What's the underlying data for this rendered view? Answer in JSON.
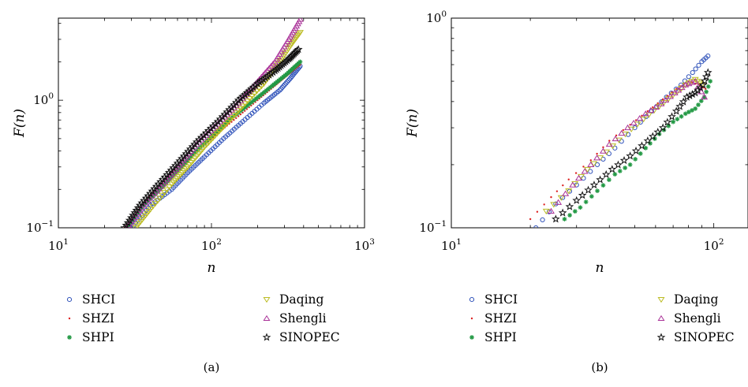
{
  "chart_data": [
    {
      "type": "scatter",
      "panel_label": "(a)",
      "xlabel": "n",
      "ylabel": "F(n)",
      "x_scale": "log",
      "y_scale": "log",
      "xlim": [
        10,
        1000
      ],
      "ylim": [
        0.1,
        4.4
      ],
      "x_ticks": [
        {
          "base": "10",
          "exp": "1",
          "value": 10
        },
        {
          "base": "10",
          "exp": "2",
          "value": 100
        },
        {
          "base": "10",
          "exp": "3",
          "value": 1000
        }
      ],
      "y_ticks": [
        {
          "base": "10",
          "exp": "−1",
          "value": 0.1
        },
        {
          "base": "10",
          "exp": "0",
          "value": 1
        }
      ],
      "grid": false,
      "legend_position": "bottom",
      "series": [
        {
          "name": "SHCI",
          "marker": "circle",
          "color": "#3355bb",
          "x": [
            30,
            40,
            55,
            70,
            90,
            120,
            160,
            220,
            280,
            330,
            380
          ],
          "y": [
            0.1,
            0.15,
            0.2,
            0.27,
            0.36,
            0.5,
            0.68,
            0.95,
            1.2,
            1.5,
            1.85
          ]
        },
        {
          "name": "SHZI",
          "marker": "dot",
          "color": "#dd2222",
          "x": [
            27,
            35,
            45,
            60,
            80,
            110,
            150,
            200,
            260,
            320,
            380
          ],
          "y": [
            0.1,
            0.15,
            0.21,
            0.29,
            0.4,
            0.55,
            0.75,
            1.0,
            1.3,
            1.6,
            1.9
          ]
        },
        {
          "name": "SHPI",
          "marker": "asterisk",
          "color": "#229944",
          "x": [
            28,
            36,
            48,
            62,
            80,
            105,
            140,
            190,
            250,
            310,
            380
          ],
          "y": [
            0.1,
            0.15,
            0.21,
            0.29,
            0.4,
            0.55,
            0.75,
            1.0,
            1.3,
            1.6,
            2.0
          ]
        },
        {
          "name": "Daqing",
          "marker": "triangle-down",
          "color": "#bbbb22",
          "x": [
            32,
            40,
            55,
            70,
            90,
            120,
            160,
            220,
            280,
            330,
            380
          ],
          "y": [
            0.1,
            0.14,
            0.22,
            0.3,
            0.43,
            0.62,
            0.9,
            1.35,
            2.0,
            2.7,
            3.4
          ]
        },
        {
          "name": "Shengli",
          "marker": "triangle-up",
          "color": "#aa3399",
          "x": [
            28,
            36,
            48,
            62,
            80,
            110,
            150,
            200,
            260,
            320,
            380
          ],
          "y": [
            0.1,
            0.15,
            0.22,
            0.31,
            0.45,
            0.65,
            0.95,
            1.4,
            2.0,
            3.0,
            4.3
          ]
        },
        {
          "name": "SINOPEC",
          "marker": "star",
          "color": "#111111",
          "x": [
            27,
            34,
            45,
            60,
            80,
            110,
            150,
            200,
            260,
            320,
            370
          ],
          "y": [
            0.1,
            0.15,
            0.22,
            0.32,
            0.47,
            0.68,
            1.0,
            1.35,
            1.7,
            2.1,
            2.5
          ]
        }
      ]
    },
    {
      "type": "scatter",
      "panel_label": "(b)",
      "xlabel": "n",
      "ylabel": "F(n)",
      "x_scale": "log",
      "y_scale": "log",
      "xlim": [
        10,
        135
      ],
      "ylim": [
        0.1,
        1.0
      ],
      "x_ticks": [
        {
          "base": "10",
          "exp": "1",
          "value": 10
        },
        {
          "base": "10",
          "exp": "2",
          "value": 100
        }
      ],
      "y_ticks": [
        {
          "base": "10",
          "exp": "−1",
          "value": 0.1
        },
        {
          "base": "10",
          "exp": "0",
          "value": 1
        }
      ],
      "grid": false,
      "legend_position": "bottom",
      "series": [
        {
          "name": "SHCI",
          "marker": "circle",
          "color": "#3355bb",
          "x": [
            21,
            25,
            30,
            36,
            42,
            50,
            58,
            66,
            75,
            83,
            90,
            95
          ],
          "y": [
            0.1,
            0.13,
            0.16,
            0.2,
            0.24,
            0.3,
            0.36,
            0.42,
            0.48,
            0.55,
            0.62,
            0.66
          ]
        },
        {
          "name": "SHZI",
          "marker": "dot",
          "color": "#dd2222",
          "x": [
            20,
            24,
            28,
            34,
            40,
            48,
            56,
            64,
            72,
            80,
            88,
            93
          ],
          "y": [
            0.11,
            0.14,
            0.17,
            0.21,
            0.26,
            0.31,
            0.36,
            0.41,
            0.46,
            0.5,
            0.48,
            0.46
          ]
        },
        {
          "name": "SHPI",
          "marker": "asterisk",
          "color": "#229944",
          "x": [
            27,
            31,
            36,
            42,
            48,
            55,
            62,
            70,
            78,
            85,
            92,
            97
          ],
          "y": [
            0.11,
            0.125,
            0.15,
            0.18,
            0.2,
            0.24,
            0.28,
            0.32,
            0.35,
            0.37,
            0.42,
            0.5
          ]
        },
        {
          "name": "Daqing",
          "marker": "triangle-down",
          "color": "#bbbb22",
          "x": [
            23,
            28,
            33,
            39,
            46,
            54,
            62,
            70,
            78,
            85,
            90
          ],
          "y": [
            0.12,
            0.15,
            0.19,
            0.23,
            0.28,
            0.33,
            0.38,
            0.43,
            0.48,
            0.51,
            0.48
          ]
        },
        {
          "name": "Shengli",
          "marker": "triangle-up",
          "color": "#aa3399",
          "x": [
            24,
            29,
            34,
            40,
            47,
            55,
            63,
            71,
            78,
            85,
            92
          ],
          "y": [
            0.12,
            0.16,
            0.2,
            0.25,
            0.3,
            0.35,
            0.39,
            0.44,
            0.48,
            0.5,
            0.42
          ]
        },
        {
          "name": "SINOPEC",
          "marker": "star",
          "color": "#111111",
          "x": [
            25,
            30,
            35,
            41,
            48,
            56,
            64,
            72,
            79,
            85,
            91,
            95
          ],
          "y": [
            0.11,
            0.135,
            0.16,
            0.19,
            0.22,
            0.26,
            0.3,
            0.36,
            0.42,
            0.44,
            0.48,
            0.55
          ]
        }
      ]
    }
  ]
}
